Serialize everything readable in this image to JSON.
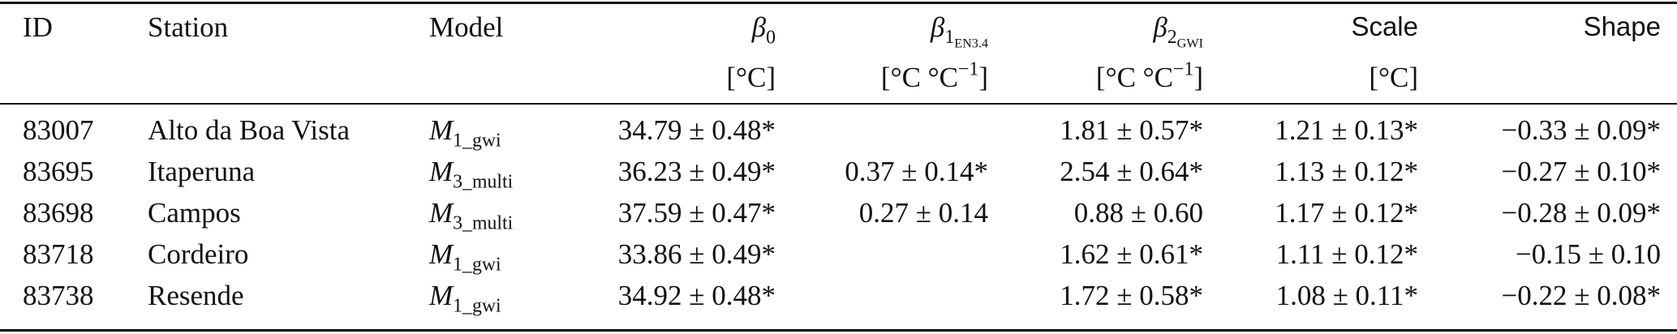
{
  "table": {
    "columns": {
      "id": "ID",
      "station": "Station",
      "model": "Model",
      "beta0": {
        "symbol": "β",
        "sub": "0",
        "unit": "[°C]"
      },
      "beta1": {
        "symbol": "β",
        "sub": "1",
        "subsub": "EN3.4",
        "unit_main": "[°C °C",
        "unit_exp": "−1",
        "unit_close": "]"
      },
      "beta2": {
        "symbol": "β",
        "sub": "2",
        "subsub": "GWI",
        "unit_main": "[°C °C",
        "unit_exp": "−1",
        "unit_close": "]"
      },
      "scale": {
        "label": "Scale",
        "unit": "[°C]"
      },
      "shape": "Shape"
    },
    "rows": [
      {
        "id": "83007",
        "station": "Alto da Boa Vista",
        "model_base": "M",
        "model_sub": "1_gwi",
        "beta0": "34.79 ± 0.48*",
        "beta1": "",
        "beta2": "1.81 ± 0.57*",
        "scale": "1.21 ± 0.13*",
        "shape": "−0.33 ± 0.09*"
      },
      {
        "id": "83695",
        "station": "Itaperuna",
        "model_base": "M",
        "model_sub": "3_multi",
        "beta0": "36.23 ± 0.49*",
        "beta1": "0.37 ± 0.14*",
        "beta2": "2.54 ± 0.64*",
        "scale": "1.13 ± 0.12*",
        "shape": "−0.27 ± 0.10*"
      },
      {
        "id": "83698",
        "station": "Campos",
        "model_base": "M",
        "model_sub": "3_multi",
        "beta0": "37.59 ± 0.47*",
        "beta1": "0.27 ± 0.14",
        "beta2": "0.88 ± 0.60",
        "scale": "1.17 ± 0.12*",
        "shape": "−0.28 ± 0.09*"
      },
      {
        "id": "83718",
        "station": "Cordeiro",
        "model_base": "M",
        "model_sub": "1_gwi",
        "beta0": "33.86 ± 0.49*",
        "beta1": "",
        "beta2": "1.62 ± 0.61*",
        "scale": "1.11 ± 0.12*",
        "shape": "−0.15 ± 0.10"
      },
      {
        "id": "83738",
        "station": "Resende",
        "model_base": "M",
        "model_sub": "1_gwi",
        "beta0": "34.92 ± 0.48*",
        "beta1": "",
        "beta2": "1.72 ± 0.58*",
        "scale": "1.08 ± 0.11*",
        "shape": "−0.22 ± 0.08*"
      }
    ]
  }
}
